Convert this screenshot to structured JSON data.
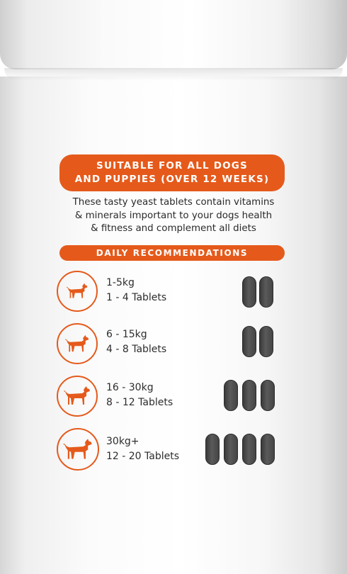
{
  "banner": {
    "line1": "SUITABLE FOR ALL DOGS",
    "line2": "AND PUPPIES (OVER 12 WEEKS)"
  },
  "description": {
    "line1": "These tasty yeast tablets contain vitamins",
    "line2": "& minerals important to your dogs health",
    "line3": "& fitness and complement all diets"
  },
  "daily_heading": "DAILY RECOMMENDATIONS",
  "accent_color": "#e55a1b",
  "tablet_color": "#444444",
  "icon": "dog-silhouette-icon",
  "recommendations": [
    {
      "weight": "1-5kg",
      "dose": "1 - 4 Tablets",
      "tablet_icons": 2
    },
    {
      "weight": "6 - 15kg",
      "dose": "4 - 8 Tablets",
      "tablet_icons": 2
    },
    {
      "weight": "16 - 30kg",
      "dose": "8 - 12 Tablets",
      "tablet_icons": 3
    },
    {
      "weight": "30kg+",
      "dose": "12 - 20 Tablets",
      "tablet_icons": 4
    }
  ]
}
